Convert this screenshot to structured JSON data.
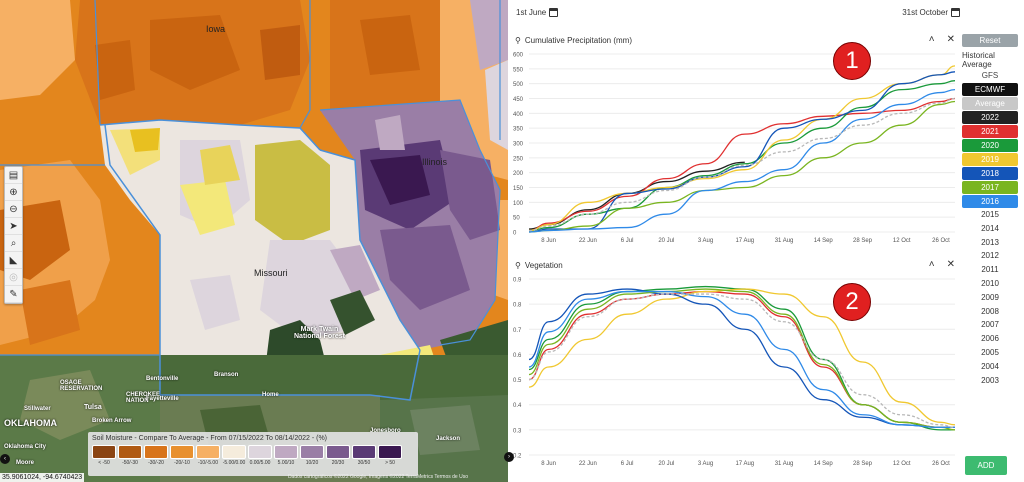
{
  "map": {
    "labels": {
      "iowa": "Iowa",
      "illinois": "Illinois",
      "missouri": "Missouri",
      "oklahoma": "OKLAHOMA",
      "osage": "OSAGE\nRESERVATION",
      "cherokee": "CHEROKEE\nNATION",
      "tulsa": "Tulsa",
      "broken_arrow": "Broken Arrow",
      "stillwater": "Stillwater",
      "bentonville": "Bentonville",
      "fayetteville": "Fayetteville",
      "branson": "Branson",
      "home": "Home",
      "mark_twain": "Mark Twain\nNational Forest",
      "jonesboro": "Jonesboro",
      "jackson": "Jackson",
      "moore": "Moore",
      "okc": "Oklahoma City"
    },
    "coordinates": "35.9061024, -94.6740423",
    "attribution": "Dados cartográficos ©2022 Google, Imagens ©2022 TerraMetrics   Termos de Uso",
    "toolbar": [
      "layers-icon",
      "zoom-in-icon",
      "zoom-out-icon",
      "navigate-icon",
      "search-icon",
      "measure-icon",
      "locate-icon",
      "draw-icon"
    ]
  },
  "legend": {
    "title": "Soil Moisture - Compare To Average - From 07/15/2022 To 08/14/2022 - (%)",
    "items": [
      {
        "label": "< -50",
        "color": "#8b4513"
      },
      {
        "label": "-50/-30",
        "color": "#b05a12"
      },
      {
        "label": "-30/-20",
        "color": "#d8741a"
      },
      {
        "label": "-20/-10",
        "color": "#e8902e"
      },
      {
        "label": "-10/-5.00",
        "color": "#f6b064"
      },
      {
        "label": "-5.00/0.00",
        "color": "#f5ecdc"
      },
      {
        "label": "0.00/5.00",
        "color": "#ddd5dd"
      },
      {
        "label": "5.00/10",
        "color": "#bfa9c2"
      },
      {
        "label": "10/20",
        "color": "#9a7ea6"
      },
      {
        "label": "20/30",
        "color": "#7a5a8e"
      },
      {
        "label": "30/50",
        "color": "#5a3a75"
      },
      {
        "label": "> 50",
        "color": "#3a1850"
      }
    ]
  },
  "dates": {
    "start": "1st June",
    "end": "31st October"
  },
  "x_ticks": [
    "8 Jun",
    "22 Jun",
    "6 Jul",
    "20 Jul",
    "3 Aug",
    "17 Aug",
    "31 Aug",
    "14 Sep",
    "28 Sep",
    "12 Oct",
    "26 Oct"
  ],
  "charts": {
    "precip": {
      "title": "Cumulative Precipitation (mm)",
      "badge": "1",
      "yticks": [
        "0",
        "50",
        "100",
        "150",
        "200",
        "250",
        "300",
        "350",
        "400",
        "450",
        "500",
        "550",
        "600"
      ]
    },
    "veg": {
      "title": "Vegetation",
      "badge": "2",
      "yticks": [
        "0.2",
        "0.3",
        "0.4",
        "0.5",
        "0.6",
        "0.7",
        "0.8",
        "0.9"
      ]
    }
  },
  "chart_data": [
    {
      "type": "line",
      "title": "Cumulative Precipitation (mm)",
      "ylim": [
        0,
        600
      ],
      "x": [
        "1 Jun",
        "8 Jun",
        "22 Jun",
        "6 Jul",
        "20 Jul",
        "3 Aug",
        "17 Aug",
        "31 Aug",
        "14 Sep",
        "28 Sep",
        "12 Oct",
        "26 Oct",
        "31 Oct"
      ],
      "series": [
        {
          "name": "2022",
          "color": "#222222",
          "values": [
            10,
            25,
            75,
            130,
            170,
            205,
            235,
            null,
            null,
            null,
            null,
            null,
            null
          ]
        },
        {
          "name": "2021",
          "color": "#e03030",
          "values": [
            5,
            30,
            70,
            120,
            180,
            230,
            330,
            365,
            390,
            400,
            410,
            440,
            450
          ]
        },
        {
          "name": "2020",
          "color": "#1a9a3a",
          "values": [
            5,
            15,
            60,
            80,
            150,
            190,
            230,
            300,
            350,
            420,
            480,
            500,
            510
          ]
        },
        {
          "name": "2019",
          "color": "#f0c830",
          "values": [
            5,
            25,
            100,
            130,
            150,
            180,
            210,
            310,
            380,
            450,
            500,
            530,
            560
          ]
        },
        {
          "name": "2018",
          "color": "#1455b8",
          "values": [
            0,
            10,
            10,
            130,
            145,
            185,
            220,
            350,
            380,
            410,
            500,
            530,
            540
          ]
        },
        {
          "name": "2017",
          "color": "#7ab520",
          "values": [
            0,
            5,
            20,
            80,
            100,
            140,
            150,
            190,
            250,
            300,
            360,
            430,
            440
          ]
        },
        {
          "name": "2016",
          "color": "#2f8ae8",
          "values": [
            0,
            5,
            10,
            15,
            60,
            140,
            170,
            210,
            300,
            380,
            430,
            470,
            480
          ]
        },
        {
          "name": "Average",
          "color": "#b8b8b8",
          "dashed": true,
          "values": [
            5,
            20,
            60,
            100,
            140,
            185,
            225,
            270,
            315,
            360,
            400,
            435,
            450
          ]
        }
      ]
    },
    {
      "type": "line",
      "title": "Vegetation",
      "ylim": [
        0.2,
        0.9
      ],
      "x": [
        "1 Jun",
        "8 Jun",
        "22 Jun",
        "6 Jul",
        "20 Jul",
        "3 Aug",
        "17 Aug",
        "31 Aug",
        "14 Sep",
        "28 Sep",
        "12 Oct",
        "26 Oct",
        "31 Oct"
      ],
      "series": [
        {
          "name": "2021",
          "color": "#e03030",
          "values": [
            0.5,
            0.62,
            0.76,
            0.82,
            0.84,
            0.85,
            0.84,
            0.75,
            0.55,
            0.4,
            0.33,
            0.31,
            0.31
          ]
        },
        {
          "name": "2020",
          "color": "#1a9a3a",
          "values": [
            0.54,
            0.66,
            0.8,
            0.85,
            0.86,
            0.87,
            0.86,
            0.78,
            0.58,
            0.4,
            0.33,
            0.3,
            0.3
          ]
        },
        {
          "name": "2019",
          "color": "#f0c830",
          "values": [
            0.47,
            0.55,
            0.66,
            0.76,
            0.82,
            0.85,
            0.86,
            0.84,
            0.75,
            0.57,
            0.41,
            0.33,
            0.32
          ]
        },
        {
          "name": "2018",
          "color": "#1455b8",
          "values": [
            0.58,
            0.73,
            0.84,
            0.86,
            0.84,
            0.8,
            0.7,
            0.55,
            0.42,
            0.35,
            0.32,
            0.31,
            0.31
          ]
        },
        {
          "name": "2017",
          "color": "#7ab520",
          "values": [
            0.52,
            0.64,
            0.78,
            0.84,
            0.85,
            0.86,
            0.85,
            0.76,
            0.56,
            0.4,
            0.33,
            0.31,
            0.3
          ]
        },
        {
          "name": "2016",
          "color": "#2f8ae8",
          "values": [
            0.55,
            0.69,
            0.82,
            0.85,
            0.85,
            0.83,
            0.76,
            0.62,
            0.46,
            0.36,
            0.32,
            0.31,
            0.31
          ]
        },
        {
          "name": "Average",
          "color": "#b8b8b8",
          "dashed": true,
          "values": [
            0.5,
            0.61,
            0.75,
            0.82,
            0.84,
            0.84,
            0.82,
            0.73,
            0.58,
            0.44,
            0.36,
            0.32,
            0.31
          ]
        }
      ]
    }
  ],
  "sidebar": {
    "reset": "Reset",
    "historical_average": "Historical Average",
    "gfs": "GFS",
    "buttons": [
      {
        "label": "ECMWF",
        "color": "#111111"
      },
      {
        "label": "Average",
        "color": "#c8c8c8"
      },
      {
        "label": "2022",
        "color": "#222222"
      },
      {
        "label": "2021",
        "color": "#e03030"
      },
      {
        "label": "2020",
        "color": "#1a9a3a"
      },
      {
        "label": "2019",
        "color": "#f0c830"
      },
      {
        "label": "2018",
        "color": "#1455b8"
      },
      {
        "label": "2017",
        "color": "#7ab520"
      },
      {
        "label": "2016",
        "color": "#2f8ae8"
      }
    ],
    "years": [
      "2015",
      "2014",
      "2013",
      "2012",
      "2011",
      "2010",
      "2009",
      "2008",
      "2007",
      "2006",
      "2005",
      "2004",
      "2003"
    ],
    "add": "ADD"
  }
}
